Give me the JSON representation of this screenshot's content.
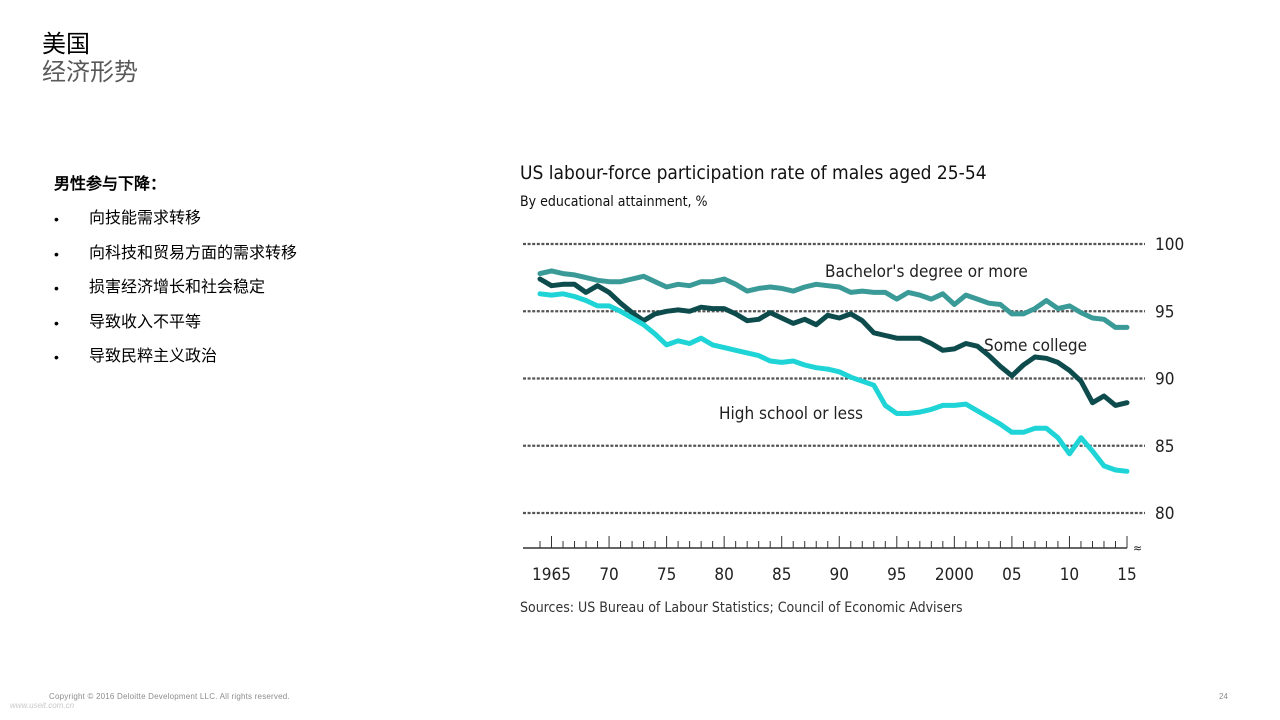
{
  "title": {
    "line1": "美国",
    "line2": "经济形势"
  },
  "left": {
    "heading": "男性参与下降：",
    "bullet": "•",
    "items": [
      "向技能需求转移",
      "向科技和贸易方面的需求转移",
      "损害经济增长和社会稳定",
      "导致收入不平等",
      "导致民粹主义政治"
    ]
  },
  "chart_data": {
    "type": "line",
    "title": "US labour-force participation rate of males aged 25-54",
    "subtitle": "By educational attainment, %",
    "x_ticks": [
      "1965",
      "70",
      "75",
      "80",
      "85",
      "90",
      "95",
      "2000",
      "05",
      "10",
      "15"
    ],
    "y_ticks": [
      100,
      95,
      90,
      85,
      80
    ],
    "ylim": [
      80,
      100
    ],
    "xlim": [
      1964,
      2015
    ],
    "grid": true,
    "source": "Sources: US Bureau of Labour Statistics; Council of Economic Advisers",
    "x": [
      1964,
      1965,
      1966,
      1967,
      1968,
      1969,
      1970,
      1971,
      1972,
      1973,
      1974,
      1975,
      1976,
      1977,
      1978,
      1979,
      1980,
      1981,
      1982,
      1983,
      1984,
      1985,
      1986,
      1987,
      1988,
      1989,
      1990,
      1991,
      1992,
      1993,
      1994,
      1995,
      1996,
      1997,
      1998,
      1999,
      2000,
      2001,
      2002,
      2003,
      2004,
      2005,
      2006,
      2007,
      2008,
      2009,
      2010,
      2011,
      2012,
      2013,
      2014,
      2015
    ],
    "series": [
      {
        "name": "Bachelor's degree or more",
        "color": "#3a9a97",
        "values": [
          97.8,
          98.0,
          97.8,
          97.7,
          97.5,
          97.3,
          97.2,
          97.2,
          97.4,
          97.6,
          97.2,
          96.8,
          97.0,
          96.9,
          97.2,
          97.2,
          97.4,
          97.0,
          96.5,
          96.7,
          96.8,
          96.7,
          96.5,
          96.8,
          97.0,
          96.9,
          96.8,
          96.4,
          96.5,
          96.4,
          96.4,
          95.9,
          96.4,
          96.2,
          95.9,
          96.3,
          95.5,
          96.2,
          95.9,
          95.6,
          95.5,
          94.8,
          94.8,
          95.2,
          95.8,
          95.2,
          95.4,
          94.9,
          94.5,
          94.4,
          93.8,
          93.8
        ]
      },
      {
        "name": "Some college",
        "color": "#0e4b4c",
        "values": [
          97.4,
          96.9,
          97.0,
          97.0,
          96.4,
          96.9,
          96.4,
          95.6,
          94.9,
          94.3,
          94.8,
          95.0,
          95.1,
          95.0,
          95.3,
          95.2,
          95.2,
          94.8,
          94.3,
          94.4,
          94.9,
          94.5,
          94.1,
          94.4,
          94.0,
          94.7,
          94.5,
          94.8,
          94.3,
          93.4,
          93.2,
          93.0,
          93.0,
          93.0,
          92.6,
          92.1,
          92.2,
          92.6,
          92.4,
          91.7,
          90.9,
          90.2,
          91.0,
          91.6,
          91.5,
          91.2,
          90.6,
          89.8,
          88.2,
          88.7,
          88.0,
          88.2
        ]
      },
      {
        "name": "High school or less",
        "color": "#1fd4d6",
        "values": [
          96.3,
          96.2,
          96.3,
          96.1,
          95.8,
          95.4,
          95.4,
          95.0,
          94.5,
          94.0,
          93.3,
          92.5,
          92.8,
          92.6,
          93.0,
          92.5,
          92.3,
          92.1,
          91.9,
          91.7,
          91.3,
          91.2,
          91.3,
          91.0,
          90.8,
          90.7,
          90.5,
          90.1,
          89.8,
          89.5,
          88.0,
          87.4,
          87.4,
          87.5,
          87.7,
          88.0,
          88.0,
          88.1,
          87.6,
          87.1,
          86.6,
          86.0,
          86.0,
          86.3,
          86.3,
          85.6,
          84.4,
          85.6,
          84.6,
          83.5,
          83.2,
          83.1
        ]
      }
    ]
  },
  "footer": {
    "copyright": "Copyright © 2016 Deloitte Development LLC. All rights reserved.",
    "watermark": "www.useit.com.cn",
    "page": "24"
  }
}
